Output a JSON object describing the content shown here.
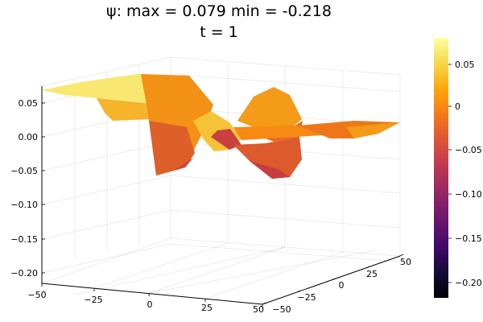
{
  "chart_data": {
    "type": "surface3d",
    "title": "ψ: max = 0.079 min = -0.218",
    "subtitle": "t = 1",
    "x_ticks": [
      "−50",
      "−25",
      "0",
      "25",
      "50"
    ],
    "y_ticks": [
      "−50",
      "−25",
      "0",
      "25",
      "50"
    ],
    "z_ticks": [
      "0.05",
      "0.00",
      "−0.05",
      "−0.10",
      "−0.15",
      "−0.20"
    ],
    "xlim": [
      -50,
      50
    ],
    "ylim": [
      -50,
      50
    ],
    "zlim": [
      -0.22,
      0.08
    ],
    "colorbar": {
      "ticks": [
        "0.05",
        "0",
        "−0.05",
        "−0.10",
        "−0.15",
        "−0.20"
      ],
      "range": [
        -0.218,
        0.079
      ]
    },
    "colormap": "inferno",
    "grid": true,
    "max": 0.079,
    "min": -0.218
  }
}
